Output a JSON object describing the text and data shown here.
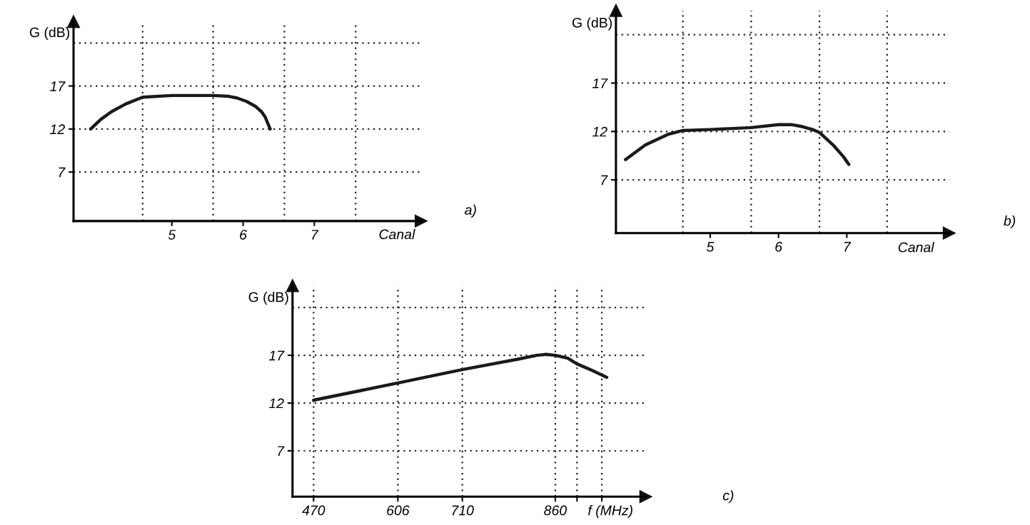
{
  "chart_data": [
    {
      "type": "line",
      "ylabel": "G (dB)",
      "xlabel": "Canal",
      "annotations": [
        "a)"
      ],
      "grid": "y",
      "line_style": "solid",
      "marker": "none",
      "xlim": [
        3.62,
        8.5
      ],
      "ylim": [
        1.3,
        24.5
      ],
      "xticks": [
        5,
        6,
        7
      ],
      "yticks": [
        7,
        12,
        17
      ],
      "ref_lines": [
        {
          "axis": "y",
          "value": 22,
          "line_style": "dotted"
        },
        {
          "axis": "x",
          "value": 4.59,
          "line_style": "dotted"
        },
        {
          "axis": "x",
          "value": 5.58,
          "line_style": "dotted"
        },
        {
          "axis": "x",
          "value": 6.58,
          "line_style": "dotted"
        },
        {
          "axis": "x",
          "value": 7.58,
          "line_style": "dotted"
        }
      ],
      "series": [
        {
          "color": "#1a1a1a",
          "x": [
            3.86,
            4.0,
            4.15,
            4.35,
            4.59,
            5.0,
            5.58,
            5.8,
            5.92,
            6.05,
            6.18,
            6.26,
            6.31,
            6.38
          ],
          "values": [
            12.0,
            13.1,
            14.0,
            14.9,
            15.7,
            15.9,
            15.9,
            15.8,
            15.6,
            15.2,
            14.6,
            14.0,
            13.4,
            12.0
          ]
        }
      ]
    },
    {
      "type": "line",
      "ylabel": "G (dB)",
      "xlabel": "Canal",
      "annotations": [
        "b)"
      ],
      "grid": "y",
      "line_style": "solid",
      "marker": "none",
      "xlim": [
        3.62,
        8.5
      ],
      "ylim": [
        1.5,
        24.5
      ],
      "xticks": [
        5,
        6,
        7
      ],
      "yticks": [
        7,
        12,
        17
      ],
      "ref_lines": [
        {
          "axis": "y",
          "value": 22,
          "line_style": "dotted"
        },
        {
          "axis": "x",
          "value": 4.6,
          "line_style": "dotted"
        },
        {
          "axis": "x",
          "value": 5.6,
          "line_style": "dotted"
        },
        {
          "axis": "x",
          "value": 6.6,
          "line_style": "dotted"
        },
        {
          "axis": "x",
          "value": 7.59,
          "line_style": "dotted"
        }
      ],
      "series": [
        {
          "color": "#1a1a1a",
          "x": [
            3.76,
            4.05,
            4.38,
            4.6,
            5.0,
            5.6,
            6.0,
            6.2,
            6.35,
            6.5,
            6.6,
            6.8,
            6.95,
            7.03
          ],
          "values": [
            9.1,
            10.6,
            11.7,
            12.1,
            12.2,
            12.4,
            12.7,
            12.7,
            12.5,
            12.2,
            11.9,
            10.6,
            9.4,
            8.6
          ]
        }
      ]
    },
    {
      "type": "line",
      "ylabel": "G (dB)",
      "xlabel": "f (MHz)",
      "annotations": [
        "c)"
      ],
      "grid": true,
      "line_style": "solid",
      "marker": "none",
      "xlim": [
        436,
        1006
      ],
      "ylim": [
        2.2,
        24.3
      ],
      "xticks": [
        470,
        606,
        710,
        860,
        {
          "value": 895,
          "label": null
        },
        {
          "value": 935,
          "label": null
        }
      ],
      "yticks": [
        7,
        12,
        17
      ],
      "ref_lines": [
        {
          "axis": "y",
          "value": 22,
          "line_style": "dotted"
        }
      ],
      "series": [
        {
          "color": "#1a1a1a",
          "x": [
            470,
            606,
            710,
            800,
            830,
            845,
            860,
            880,
            895,
            920,
            943
          ],
          "values": [
            12.3,
            14.1,
            15.5,
            16.6,
            17.0,
            17.1,
            17.0,
            16.7,
            16.1,
            15.4,
            14.7
          ]
        }
      ]
    }
  ]
}
